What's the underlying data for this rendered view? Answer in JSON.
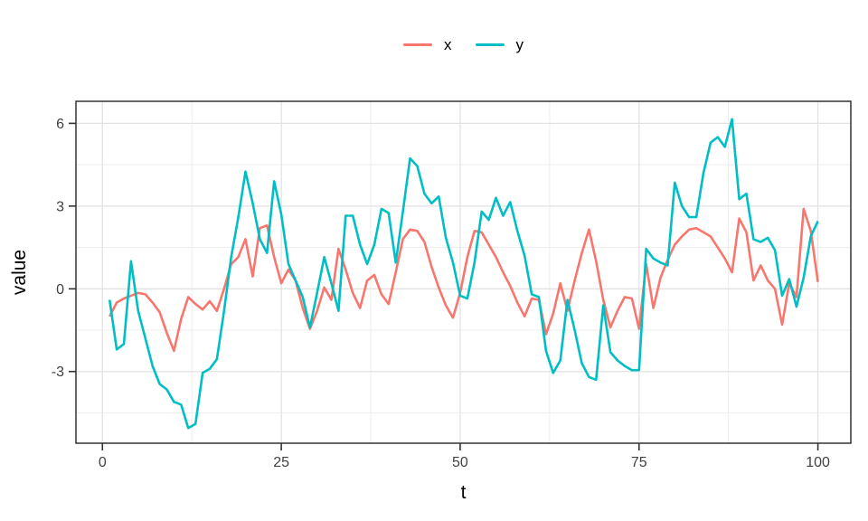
{
  "chart_data": {
    "type": "line",
    "title": "",
    "xlabel": "t",
    "ylabel": "value",
    "legend_position": "top",
    "grid": true,
    "xlim": [
      -3.7,
      104.6
    ],
    "ylim": [
      -5.6,
      6.8
    ],
    "x_ticks": [
      0,
      25,
      50,
      75,
      100
    ],
    "x_minor_ticks": [
      12.5,
      37.5,
      62.5,
      87.5
    ],
    "y_ticks": [
      -3,
      0,
      3,
      6
    ],
    "y_minor_ticks": [
      -4.5,
      -1.5,
      1.5,
      4.5
    ],
    "colors": {
      "grid_major": "#e2e2e2",
      "grid_minor": "#ededed",
      "panel_border": "#333333",
      "tick_mark": "#333333",
      "tick_label": "#404040"
    },
    "x": [
      1,
      2,
      3,
      4,
      5,
      6,
      7,
      8,
      9,
      10,
      11,
      12,
      13,
      14,
      15,
      16,
      17,
      18,
      19,
      20,
      21,
      22,
      23,
      24,
      25,
      26,
      27,
      28,
      29,
      30,
      31,
      32,
      33,
      34,
      35,
      36,
      37,
      38,
      39,
      40,
      41,
      42,
      43,
      44,
      45,
      46,
      47,
      48,
      49,
      50,
      51,
      52,
      53,
      54,
      55,
      56,
      57,
      58,
      59,
      60,
      61,
      62,
      63,
      64,
      65,
      66,
      67,
      68,
      69,
      70,
      71,
      72,
      73,
      74,
      75,
      76,
      77,
      78,
      79,
      80,
      81,
      82,
      83,
      84,
      85,
      86,
      87,
      88,
      89,
      90,
      91,
      92,
      93,
      94,
      95,
      96,
      97,
      98,
      99,
      100
    ],
    "series": [
      {
        "name": "x",
        "color": "#F8766D",
        "values": [
          -1.0,
          -0.5,
          -0.35,
          -0.25,
          -0.15,
          -0.2,
          -0.5,
          -0.85,
          -1.6,
          -2.25,
          -1.1,
          -0.3,
          -0.55,
          -0.75,
          -0.45,
          -0.8,
          0.0,
          0.9,
          1.15,
          1.8,
          0.45,
          2.2,
          2.3,
          1.15,
          0.2,
          0.7,
          0.3,
          -0.7,
          -1.45,
          -0.8,
          0.05,
          -0.4,
          1.45,
          0.7,
          -0.15,
          -0.7,
          0.3,
          0.5,
          -0.2,
          -0.55,
          0.6,
          1.8,
          2.15,
          2.1,
          1.7,
          0.8,
          0.05,
          -0.6,
          -1.05,
          -0.15,
          1.15,
          2.1,
          2.05,
          1.6,
          1.15,
          0.6,
          0.1,
          -0.5,
          -1.0,
          -0.35,
          -0.4,
          -1.65,
          -0.9,
          0.2,
          -0.8,
          0.3,
          1.3,
          2.15,
          1.0,
          -0.4,
          -1.4,
          -0.8,
          -0.3,
          -0.35,
          -1.45,
          0.9,
          -0.7,
          0.4,
          1.05,
          1.6,
          1.9,
          2.15,
          2.2,
          2.05,
          1.9,
          1.5,
          1.1,
          0.6,
          2.55,
          2.05,
          0.3,
          0.85,
          0.3,
          0.0,
          -1.3,
          0.2,
          -0.3,
          2.9,
          2.1,
          0.25
        ]
      },
      {
        "name": "y",
        "color": "#00BFC4",
        "values": [
          -0.4,
          -2.2,
          -2.0,
          1.0,
          -0.8,
          -1.8,
          -2.8,
          -3.45,
          -3.65,
          -4.1,
          -4.2,
          -5.05,
          -4.9,
          -3.05,
          -2.9,
          -2.55,
          -0.8,
          1.15,
          2.6,
          4.25,
          3.1,
          1.8,
          1.3,
          3.9,
          2.7,
          0.9,
          0.3,
          -0.3,
          -1.4,
          -0.15,
          1.15,
          0.2,
          -0.8,
          2.65,
          2.65,
          1.6,
          0.9,
          1.6,
          2.9,
          2.75,
          0.95,
          2.8,
          4.73,
          4.45,
          3.45,
          3.1,
          3.35,
          1.85,
          0.95,
          -0.25,
          -0.35,
          0.95,
          2.8,
          2.5,
          3.3,
          2.65,
          3.15,
          2.1,
          1.2,
          -0.2,
          -0.3,
          -2.25,
          -3.05,
          -2.6,
          -0.4,
          -1.5,
          -2.7,
          -3.2,
          -3.3,
          -0.6,
          -2.3,
          -2.6,
          -2.8,
          -2.95,
          -2.95,
          1.45,
          1.1,
          0.95,
          0.85,
          3.85,
          3.0,
          2.6,
          2.6,
          4.2,
          5.3,
          5.5,
          5.15,
          6.15,
          3.25,
          3.45,
          1.8,
          1.7,
          1.85,
          1.4,
          -0.25,
          0.35,
          -0.65,
          0.4,
          1.9,
          2.45
        ]
      }
    ]
  }
}
